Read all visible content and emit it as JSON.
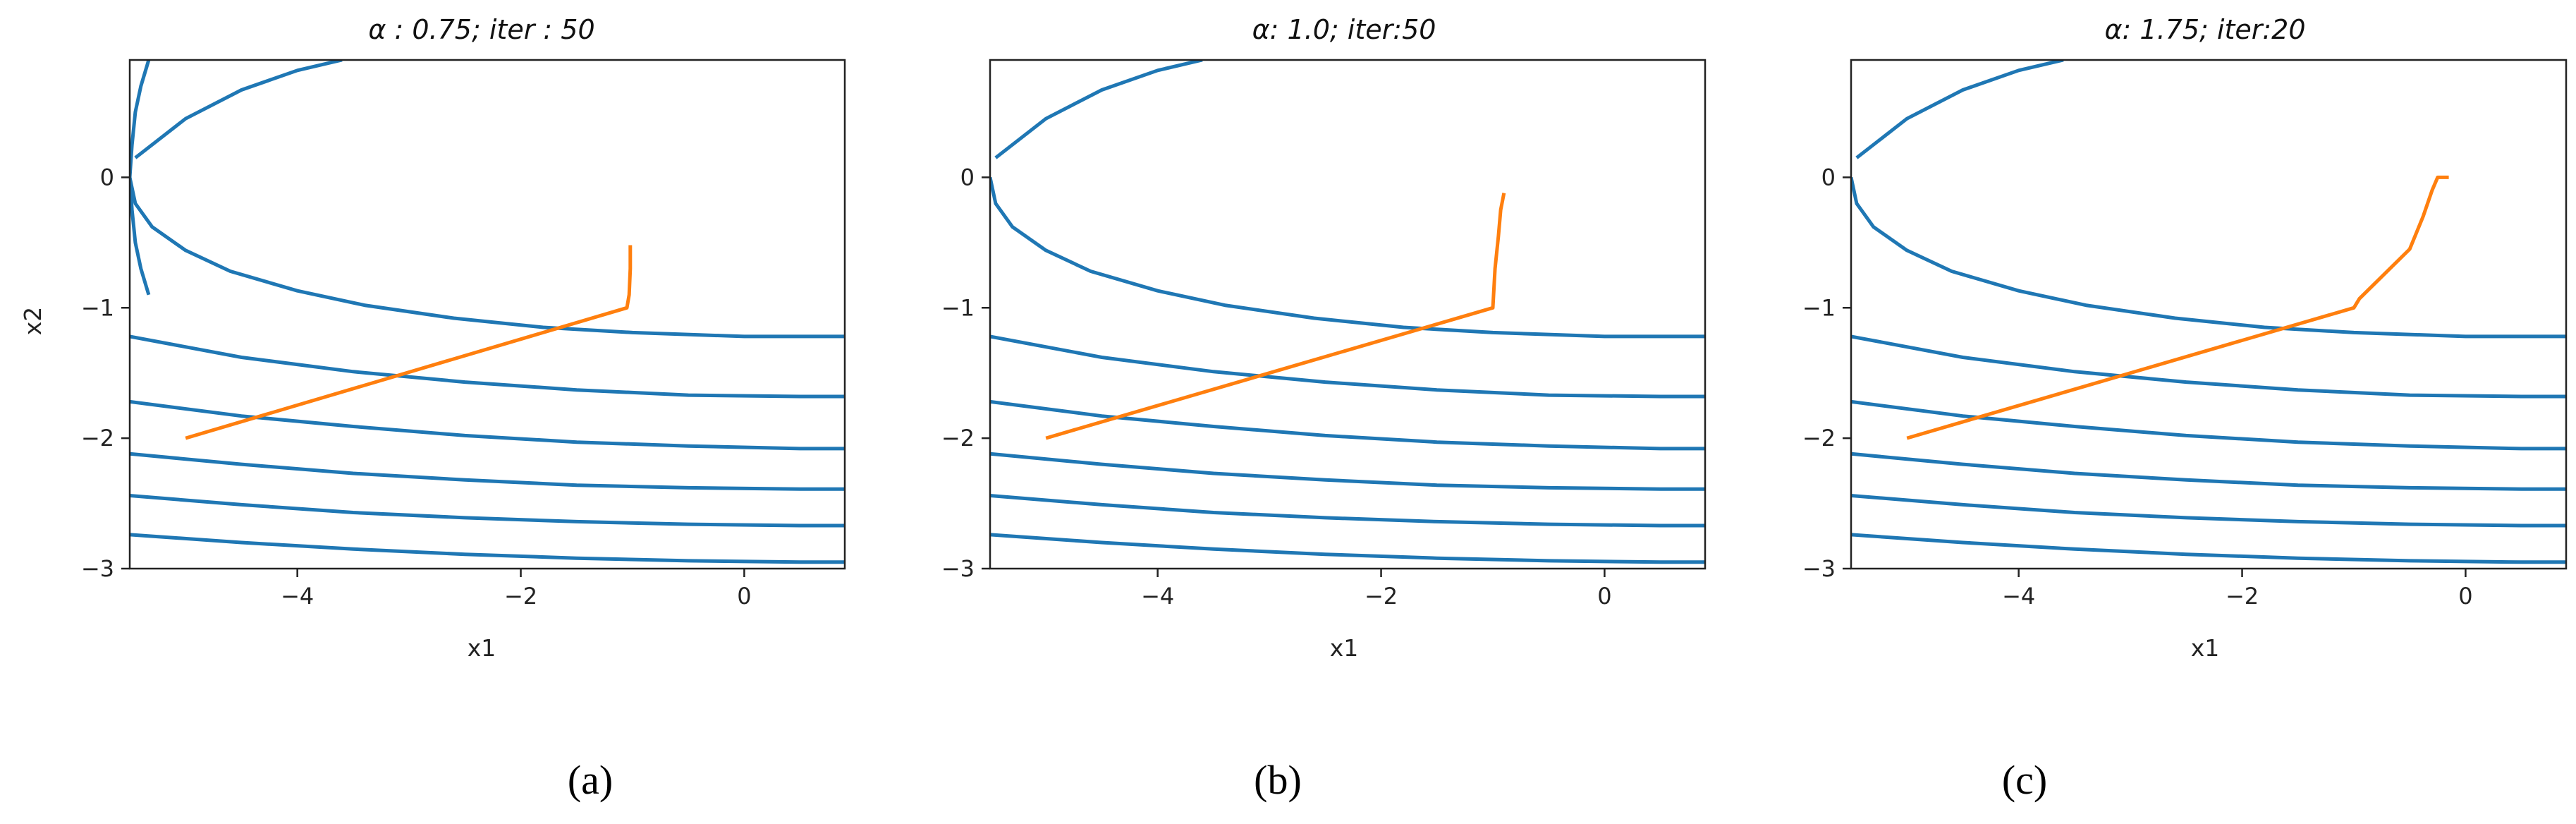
{
  "chart_data": [
    {
      "type": "line",
      "title": "α : 0.75; iter : 50",
      "caption": "(a)",
      "xlabel": "x1",
      "ylabel": "x2",
      "xlim": [
        -5.5,
        0.9
      ],
      "ylim": [
        -3.0,
        0.9
      ],
      "xticks": [
        -4,
        -2,
        0
      ],
      "yticks": [
        0,
        -1,
        -2,
        -3
      ],
      "grid": false,
      "series": [
        {
          "kind": "contour",
          "color": "#1f77b4",
          "levels": [
            {
              "x": [
                -5.5,
                -5.45,
                -5.3,
                -5.0,
                -4.6,
                -4.0,
                -3.4,
                -2.6,
                -1.8,
                -1.0,
                0.0,
                0.9
              ],
              "y": [
                0.0,
                -0.2,
                -0.38,
                -0.56,
                -0.72,
                -0.87,
                -0.98,
                -1.08,
                -1.15,
                -1.19,
                -1.22,
                -1.22
              ]
            },
            {
              "x": [
                -5.5,
                -4.5,
                -3.5,
                -2.5,
                -1.5,
                -0.5,
                0.5,
                0.9
              ],
              "y": [
                -1.22,
                -1.38,
                -1.49,
                -1.57,
                -1.63,
                -1.67,
                -1.68,
                -1.68
              ]
            },
            {
              "x": [
                -5.5,
                -4.5,
                -3.5,
                -2.5,
                -1.5,
                -0.5,
                0.5,
                0.9
              ],
              "y": [
                -1.72,
                -1.83,
                -1.91,
                -1.98,
                -2.03,
                -2.06,
                -2.08,
                -2.08
              ]
            },
            {
              "x": [
                -5.5,
                -4.5,
                -3.5,
                -2.5,
                -1.5,
                -0.5,
                0.5,
                0.9
              ],
              "y": [
                -2.12,
                -2.2,
                -2.27,
                -2.32,
                -2.36,
                -2.38,
                -2.39,
                -2.39
              ]
            },
            {
              "x": [
                -5.5,
                -4.5,
                -3.5,
                -2.5,
                -1.5,
                -0.5,
                0.5,
                0.9
              ],
              "y": [
                -2.44,
                -2.51,
                -2.57,
                -2.61,
                -2.64,
                -2.66,
                -2.67,
                -2.67
              ]
            },
            {
              "x": [
                -5.5,
                -4.5,
                -3.5,
                -2.5,
                -1.5,
                -0.5,
                0.5,
                0.9
              ],
              "y": [
                -2.74,
                -2.8,
                -2.85,
                -2.89,
                -2.92,
                -2.94,
                -2.95,
                -2.95
              ]
            },
            {
              "x": [
                -5.33,
                -5.4,
                -5.45,
                -5.48,
                -5.5,
                -5.48,
                -5.45,
                -5.4,
                -5.33
              ],
              "y": [
                0.9,
                0.7,
                0.5,
                0.25,
                0.0,
                -0.25,
                -0.5,
                -0.7,
                -0.9
              ]
            },
            {
              "x": [
                -5.45,
                -5.0,
                -4.5,
                -4.0,
                -3.6
              ],
              "y": [
                0.15,
                0.45,
                0.67,
                0.82,
                0.9
              ]
            }
          ]
        },
        {
          "kind": "path",
          "color": "#ff7f0e",
          "x": [
            -5.0,
            -1.05,
            -1.03,
            -1.02,
            -1.02
          ],
          "y": [
            -2.0,
            -1.0,
            -0.9,
            -0.7,
            -0.52
          ]
        }
      ]
    },
    {
      "type": "line",
      "title": "α: 1.0;  iter:50",
      "caption": "(b)",
      "xlabel": "x1",
      "ylabel": "",
      "xlim": [
        -5.5,
        0.9
      ],
      "ylim": [
        -3.0,
        0.9
      ],
      "xticks": [
        -4,
        -2,
        0
      ],
      "yticks": [
        0,
        -1,
        -2,
        -3
      ],
      "grid": false,
      "series": [
        {
          "kind": "contour",
          "color": "#1f77b4",
          "levels": [
            {
              "x": [
                -5.5,
                -5.45,
                -5.3,
                -5.0,
                -4.6,
                -4.0,
                -3.4,
                -2.6,
                -1.8,
                -1.0,
                0.0,
                0.9
              ],
              "y": [
                0.0,
                -0.2,
                -0.38,
                -0.56,
                -0.72,
                -0.87,
                -0.98,
                -1.08,
                -1.15,
                -1.19,
                -1.22,
                -1.22
              ]
            },
            {
              "x": [
                -5.5,
                -4.5,
                -3.5,
                -2.5,
                -1.5,
                -0.5,
                0.5,
                0.9
              ],
              "y": [
                -1.22,
                -1.38,
                -1.49,
                -1.57,
                -1.63,
                -1.67,
                -1.68,
                -1.68
              ]
            },
            {
              "x": [
                -5.5,
                -4.5,
                -3.5,
                -2.5,
                -1.5,
                -0.5,
                0.5,
                0.9
              ],
              "y": [
                -1.72,
                -1.83,
                -1.91,
                -1.98,
                -2.03,
                -2.06,
                -2.08,
                -2.08
              ]
            },
            {
              "x": [
                -5.5,
                -4.5,
                -3.5,
                -2.5,
                -1.5,
                -0.5,
                0.5,
                0.9
              ],
              "y": [
                -2.12,
                -2.2,
                -2.27,
                -2.32,
                -2.36,
                -2.38,
                -2.39,
                -2.39
              ]
            },
            {
              "x": [
                -5.5,
                -4.5,
                -3.5,
                -2.5,
                -1.5,
                -0.5,
                0.5,
                0.9
              ],
              "y": [
                -2.44,
                -2.51,
                -2.57,
                -2.61,
                -2.64,
                -2.66,
                -2.67,
                -2.67
              ]
            },
            {
              "x": [
                -5.5,
                -4.5,
                -3.5,
                -2.5,
                -1.5,
                -0.5,
                0.5,
                0.9
              ],
              "y": [
                -2.74,
                -2.8,
                -2.85,
                -2.89,
                -2.92,
                -2.94,
                -2.95,
                -2.95
              ]
            },
            {
              "x": [
                -5.45,
                -5.0,
                -4.5,
                -4.0,
                -3.6
              ],
              "y": [
                0.15,
                0.45,
                0.67,
                0.82,
                0.9
              ]
            }
          ]
        },
        {
          "kind": "path",
          "color": "#ff7f0e",
          "x": [
            -5.0,
            -1.0,
            -0.98,
            -0.95,
            -0.93,
            -0.9
          ],
          "y": [
            -2.0,
            -1.0,
            -0.7,
            -0.45,
            -0.25,
            -0.12
          ]
        }
      ]
    },
    {
      "type": "line",
      "title": "α: 1.75;  iter:20",
      "caption": "(c)",
      "xlabel": "x1",
      "ylabel": "",
      "xlim": [
        -5.5,
        0.9
      ],
      "ylim": [
        -3.0,
        0.9
      ],
      "xticks": [
        -4,
        -2,
        0
      ],
      "yticks": [
        0,
        -1,
        -2,
        -3
      ],
      "grid": false,
      "series": [
        {
          "kind": "contour",
          "color": "#1f77b4",
          "levels": [
            {
              "x": [
                -5.5,
                -5.45,
                -5.3,
                -5.0,
                -4.6,
                -4.0,
                -3.4,
                -2.6,
                -1.8,
                -1.0,
                0.0,
                0.9
              ],
              "y": [
                0.0,
                -0.2,
                -0.38,
                -0.56,
                -0.72,
                -0.87,
                -0.98,
                -1.08,
                -1.15,
                -1.19,
                -1.22,
                -1.22
              ]
            },
            {
              "x": [
                -5.5,
                -4.5,
                -3.5,
                -2.5,
                -1.5,
                -0.5,
                0.5,
                0.9
              ],
              "y": [
                -1.22,
                -1.38,
                -1.49,
                -1.57,
                -1.63,
                -1.67,
                -1.68,
                -1.68
              ]
            },
            {
              "x": [
                -5.5,
                -4.5,
                -3.5,
                -2.5,
                -1.5,
                -0.5,
                0.5,
                0.9
              ],
              "y": [
                -1.72,
                -1.83,
                -1.91,
                -1.98,
                -2.03,
                -2.06,
                -2.08,
                -2.08
              ]
            },
            {
              "x": [
                -5.5,
                -4.5,
                -3.5,
                -2.5,
                -1.5,
                -0.5,
                0.5,
                0.9
              ],
              "y": [
                -2.12,
                -2.2,
                -2.27,
                -2.32,
                -2.36,
                -2.38,
                -2.39,
                -2.39
              ]
            },
            {
              "x": [
                -5.5,
                -4.5,
                -3.5,
                -2.5,
                -1.5,
                -0.5,
                0.5,
                0.9
              ],
              "y": [
                -2.44,
                -2.51,
                -2.57,
                -2.61,
                -2.64,
                -2.66,
                -2.67,
                -2.67
              ]
            },
            {
              "x": [
                -5.5,
                -4.5,
                -3.5,
                -2.5,
                -1.5,
                -0.5,
                0.5,
                0.9
              ],
              "y": [
                -2.74,
                -2.8,
                -2.85,
                -2.89,
                -2.92,
                -2.94,
                -2.95,
                -2.95
              ]
            },
            {
              "x": [
                -5.45,
                -5.0,
                -4.5,
                -4.0,
                -3.6
              ],
              "y": [
                0.15,
                0.45,
                0.67,
                0.82,
                0.9
              ]
            }
          ]
        },
        {
          "kind": "path",
          "color": "#ff7f0e",
          "x": [
            -5.0,
            -1.0,
            -0.95,
            -0.5,
            -0.38,
            -0.3,
            -0.25,
            -0.15
          ],
          "y": [
            -2.0,
            -1.0,
            -0.93,
            -0.55,
            -0.3,
            -0.1,
            0.0,
            0.0
          ]
        }
      ]
    }
  ]
}
